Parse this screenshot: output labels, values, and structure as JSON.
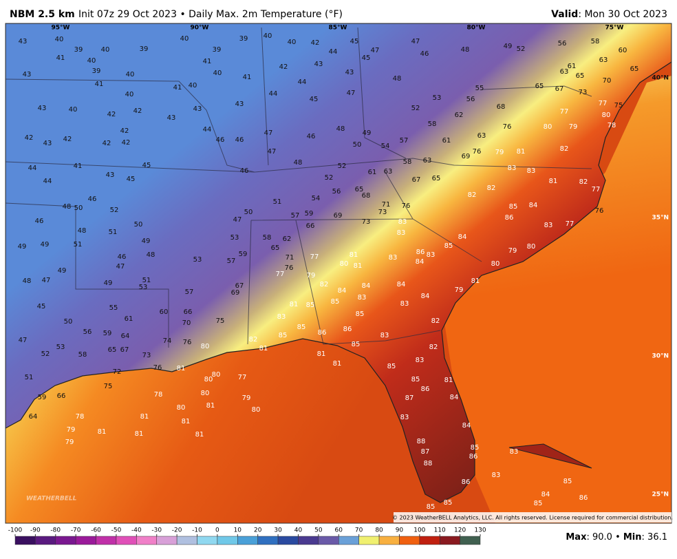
{
  "header": {
    "model": "NBM 2.5 km",
    "description": "Init 07z 29 Oct 2023 • Daily Max. 2m Temperature (°F)",
    "valid_label": "Valid",
    "valid_value": ": Mon 30 Oct 2023"
  },
  "map": {
    "lon_labels": [
      "95°W",
      "90°W",
      "85°W",
      "80°W",
      "75°W"
    ],
    "lat_labels": [
      "40°N",
      "35°N",
      "30°N",
      "25°N"
    ],
    "stations": [
      43,
      40,
      39,
      40,
      39,
      40,
      39,
      39,
      40,
      40,
      42,
      44,
      45,
      47,
      47,
      46,
      48,
      49,
      52,
      56,
      58,
      60,
      41,
      40,
      43,
      39,
      40,
      41,
      40,
      41,
      40,
      41,
      40,
      41,
      42,
      43,
      43,
      45,
      48,
      43,
      40,
      42,
      42,
      42,
      43,
      43,
      43,
      44,
      44,
      45,
      47,
      52,
      53,
      55,
      65,
      67,
      73,
      70,
      61,
      63,
      65,
      63,
      65,
      42,
      43,
      42,
      42,
      42,
      44,
      44,
      41,
      43,
      45,
      45,
      44,
      46,
      46,
      47,
      48,
      49,
      46,
      47,
      46,
      48,
      52,
      46,
      48,
      50,
      52,
      46,
      48,
      51,
      50,
      49,
      48,
      49,
      49,
      51,
      46,
      47,
      48,
      47,
      49,
      45,
      50,
      47,
      52,
      53,
      51,
      59,
      66,
      64,
      58,
      55,
      61,
      56,
      59,
      64,
      65,
      67,
      73,
      72,
      76,
      74,
      76,
      80,
      82,
      70,
      66,
      75,
      60,
      57,
      67,
      69,
      51,
      53,
      49,
      53,
      57,
      59,
      58,
      65,
      62,
      71,
      76,
      77,
      66,
      69,
      73,
      73,
      71,
      76,
      68,
      65,
      56,
      54,
      52,
      59,
      57,
      51,
      50,
      47,
      53,
      61,
      63,
      58,
      63,
      67,
      65,
      62,
      63,
      61,
      57,
      54,
      50,
      58,
      69,
      76,
      79,
      81,
      76,
      68,
      56,
      77,
      80,
      81,
      79,
      82,
      85,
      83,
      85,
      86,
      86,
      84,
      83,
      81,
      85,
      85,
      85,
      81,
      81,
      85,
      83,
      85,
      83,
      82,
      85,
      86,
      81,
      84,
      87,
      83,
      84,
      88,
      87,
      88,
      85,
      86,
      86,
      83,
      85,
      85,
      83,
      85,
      84,
      86,
      85,
      84,
      81,
      83,
      84,
      83,
      83,
      85,
      84,
      86,
      84,
      83,
      82,
      82,
      83,
      82,
      81,
      82,
      77,
      77,
      76,
      80,
      79,
      80,
      79,
      81,
      83,
      86,
      84,
      84,
      83,
      82,
      80,
      81,
      81,
      81,
      80,
      81,
      81,
      81,
      78,
      79,
      79,
      78,
      75,
      77,
      79,
      80,
      80,
      80,
      81,
      81,
      80,
      79,
      80,
      75,
      77,
      78,
      77,
      85,
      83
    ],
    "logo": "WEATHERBELL",
    "copyright": "© 2023 WeatherBELL Analytics, LLC. All rights reserved. License required for commercial distribution."
  },
  "colorbar": {
    "ticks": [
      -100,
      -90,
      -80,
      -70,
      -60,
      -50,
      -40,
      -30,
      -20,
      -10,
      0,
      10,
      20,
      30,
      40,
      50,
      60,
      70,
      80,
      90,
      100,
      110,
      120,
      130
    ]
  },
  "footer": {
    "max_label": "Max",
    "max_value": ": 90.0",
    "separator": " • ",
    "min_label": "Min",
    "min_value": ": 36.1"
  }
}
